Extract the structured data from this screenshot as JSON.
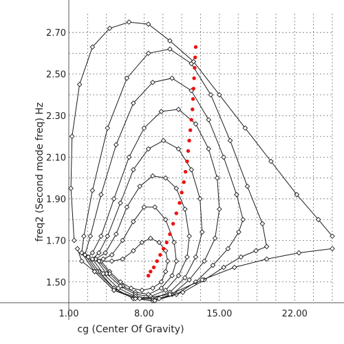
{
  "chart_data": {
    "type": "line",
    "xlabel": "cg (Center Of Gravity)",
    "ylabel": "freq2 (Second mode freq) Hz",
    "xlim": [
      1.0,
      25.5
    ],
    "ylim": [
      1.4,
      2.79
    ],
    "x_ticks": [
      {
        "v": 1.0,
        "label": "1.00"
      },
      {
        "v": 8.0,
        "label": "8.00"
      },
      {
        "v": 15.0,
        "label": "15.00"
      },
      {
        "v": 22.0,
        "label": "22.00"
      }
    ],
    "y_ticks": [
      {
        "v": 1.5,
        "label": "1.50"
      },
      {
        "v": 1.7,
        "label": "1.70"
      },
      {
        "v": 1.9,
        "label": "1.90"
      },
      {
        "v": 2.1,
        "label": "2.10"
      },
      {
        "v": 2.3,
        "label": "2.30"
      },
      {
        "v": 2.5,
        "label": "2.50"
      },
      {
        "v": 2.7,
        "label": "2.70"
      }
    ],
    "grid": true,
    "colors": {
      "curves": "#1a1a1a",
      "highlight": "#ee1111"
    },
    "series": [
      {
        "points": [
          [
            4.0,
            1.6
          ],
          [
            4.8,
            1.55
          ],
          [
            5.8,
            1.5
          ],
          [
            6.8,
            1.47
          ],
          [
            7.8,
            1.46
          ],
          [
            8.8,
            1.47
          ],
          [
            9.6,
            1.5
          ],
          [
            10.0,
            1.55
          ],
          [
            10.2,
            1.6
          ],
          [
            10.0,
            1.65
          ],
          [
            9.4,
            1.69
          ],
          [
            8.6,
            1.71
          ],
          [
            7.8,
            1.69
          ],
          [
            7.0,
            1.65
          ],
          [
            6.0,
            1.61
          ],
          [
            5.0,
            1.6
          ],
          [
            4.0,
            1.6
          ]
        ]
      },
      {
        "points": [
          [
            3.8,
            1.6
          ],
          [
            4.8,
            1.54
          ],
          [
            6.0,
            1.48
          ],
          [
            7.2,
            1.45
          ],
          [
            8.4,
            1.44
          ],
          [
            9.6,
            1.47
          ],
          [
            10.6,
            1.53
          ],
          [
            11.0,
            1.6
          ],
          [
            10.8,
            1.69
          ],
          [
            10.0,
            1.8
          ],
          [
            9.0,
            1.86
          ],
          [
            8.0,
            1.86
          ],
          [
            7.0,
            1.79
          ],
          [
            6.0,
            1.7
          ],
          [
            5.0,
            1.63
          ],
          [
            4.2,
            1.61
          ],
          [
            3.8,
            1.6
          ]
        ]
      },
      {
        "points": [
          [
            3.5,
            1.61
          ],
          [
            4.5,
            1.54
          ],
          [
            5.8,
            1.48
          ],
          [
            7.2,
            1.44
          ],
          [
            8.6,
            1.43
          ],
          [
            10.0,
            1.46
          ],
          [
            11.2,
            1.53
          ],
          [
            12.0,
            1.62
          ],
          [
            12.2,
            1.72
          ],
          [
            11.8,
            1.85
          ],
          [
            11.0,
            1.95
          ],
          [
            10.0,
            2.0
          ],
          [
            8.8,
            2.01
          ],
          [
            7.6,
            1.96
          ],
          [
            6.4,
            1.86
          ],
          [
            5.4,
            1.73
          ],
          [
            4.4,
            1.64
          ],
          [
            3.5,
            1.61
          ]
        ]
      },
      {
        "points": [
          [
            3.2,
            1.61
          ],
          [
            4.2,
            1.54
          ],
          [
            5.6,
            1.47
          ],
          [
            7.2,
            1.43
          ],
          [
            8.8,
            1.42
          ],
          [
            10.4,
            1.45
          ],
          [
            11.8,
            1.52
          ],
          [
            12.8,
            1.62
          ],
          [
            13.4,
            1.74
          ],
          [
            13.2,
            1.9
          ],
          [
            12.4,
            2.04
          ],
          [
            11.2,
            2.14
          ],
          [
            9.8,
            2.18
          ],
          [
            8.4,
            2.14
          ],
          [
            7.0,
            2.04
          ],
          [
            5.8,
            1.88
          ],
          [
            4.6,
            1.72
          ],
          [
            3.8,
            1.64
          ],
          [
            3.2,
            1.61
          ]
        ]
      },
      {
        "points": [
          [
            2.8,
            1.62
          ],
          [
            3.8,
            1.55
          ],
          [
            5.2,
            1.47
          ],
          [
            7.0,
            1.42
          ],
          [
            8.8,
            1.41
          ],
          [
            10.6,
            1.44
          ],
          [
            12.2,
            1.51
          ],
          [
            13.6,
            1.6
          ],
          [
            14.6,
            1.71
          ],
          [
            15.0,
            1.85
          ],
          [
            14.8,
            2.0
          ],
          [
            14.0,
            2.14
          ],
          [
            12.8,
            2.26
          ],
          [
            11.2,
            2.33
          ],
          [
            9.6,
            2.32
          ],
          [
            8.0,
            2.24
          ],
          [
            6.6,
            2.1
          ],
          [
            5.2,
            1.9
          ],
          [
            4.0,
            1.72
          ],
          [
            3.2,
            1.64
          ],
          [
            2.8,
            1.62
          ]
        ]
      },
      {
        "points": [
          [
            2.5,
            1.63
          ],
          [
            3.6,
            1.55
          ],
          [
            5.2,
            1.47
          ],
          [
            7.0,
            1.42
          ],
          [
            9.0,
            1.41
          ],
          [
            11.0,
            1.44
          ],
          [
            12.8,
            1.5
          ],
          [
            14.4,
            1.58
          ],
          [
            15.8,
            1.66
          ],
          [
            16.8,
            1.74
          ],
          [
            17.2,
            1.8
          ],
          [
            16.6,
            1.92
          ],
          [
            15.4,
            2.1
          ],
          [
            14.0,
            2.28
          ],
          [
            12.4,
            2.42
          ],
          [
            10.6,
            2.48
          ],
          [
            8.8,
            2.46
          ],
          [
            7.0,
            2.36
          ],
          [
            5.4,
            2.16
          ],
          [
            4.0,
            1.92
          ],
          [
            3.0,
            1.72
          ],
          [
            2.5,
            1.63
          ]
        ]
      },
      {
        "points": [
          [
            2.2,
            1.64
          ],
          [
            3.4,
            1.55
          ],
          [
            5.2,
            1.46
          ],
          [
            7.2,
            1.42
          ],
          [
            9.4,
            1.42
          ],
          [
            11.6,
            1.45
          ],
          [
            13.6,
            1.51
          ],
          [
            15.4,
            1.57
          ],
          [
            17.0,
            1.62
          ],
          [
            18.4,
            1.65
          ],
          [
            19.4,
            1.67
          ],
          [
            19.0,
            1.78
          ],
          [
            17.6,
            1.96
          ],
          [
            16.0,
            2.18
          ],
          [
            14.2,
            2.4
          ],
          [
            12.4,
            2.55
          ],
          [
            10.4,
            2.62
          ],
          [
            8.4,
            2.6
          ],
          [
            6.4,
            2.48
          ],
          [
            4.6,
            2.24
          ],
          [
            3.2,
            1.94
          ],
          [
            2.4,
            1.72
          ],
          [
            2.2,
            1.64
          ]
        ]
      },
      {
        "points": [
          [
            1.8,
            1.66
          ],
          [
            2.2,
            1.6
          ],
          [
            3.4,
            1.55
          ],
          [
            5.2,
            1.46
          ],
          [
            7.6,
            1.42
          ],
          [
            10.4,
            1.44
          ],
          [
            13.4,
            1.51
          ],
          [
            16.4,
            1.57
          ],
          [
            19.4,
            1.61
          ],
          [
            22.4,
            1.64
          ],
          [
            25.5,
            1.66
          ]
        ]
      },
      {
        "points": [
          [
            1.5,
            1.7
          ],
          [
            1.2,
            1.95
          ],
          [
            1.3,
            2.2
          ],
          [
            2.0,
            2.45
          ],
          [
            3.2,
            2.63
          ],
          [
            4.8,
            2.72
          ],
          [
            6.6,
            2.75
          ],
          [
            8.4,
            2.74
          ],
          [
            10.4,
            2.66
          ],
          [
            12.6,
            2.56
          ],
          [
            15.0,
            2.4
          ],
          [
            17.4,
            2.24
          ],
          [
            19.8,
            2.08
          ],
          [
            22.2,
            1.92
          ],
          [
            24.2,
            1.8
          ],
          [
            25.5,
            1.72
          ]
        ]
      }
    ],
    "highlight_points": [
      [
        8.4,
        1.53
      ],
      [
        8.6,
        1.55
      ],
      [
        8.9,
        1.57
      ],
      [
        9.2,
        1.6
      ],
      [
        9.5,
        1.63
      ],
      [
        9.8,
        1.66
      ],
      [
        10.1,
        1.69
      ],
      [
        10.4,
        1.73
      ],
      [
        10.7,
        1.78
      ],
      [
        11.0,
        1.83
      ],
      [
        11.3,
        1.88
      ],
      [
        11.5,
        1.93
      ],
      [
        11.7,
        1.98
      ],
      [
        11.85,
        2.03
      ],
      [
        12.0,
        2.08
      ],
      [
        12.1,
        2.13
      ],
      [
        12.2,
        2.18
      ],
      [
        12.3,
        2.23
      ],
      [
        12.4,
        2.28
      ],
      [
        12.5,
        2.33
      ],
      [
        12.55,
        2.38
      ],
      [
        12.6,
        2.43
      ],
      [
        12.65,
        2.48
      ],
      [
        12.7,
        2.53
      ],
      [
        12.75,
        2.58
      ],
      [
        12.8,
        2.63
      ]
    ]
  }
}
